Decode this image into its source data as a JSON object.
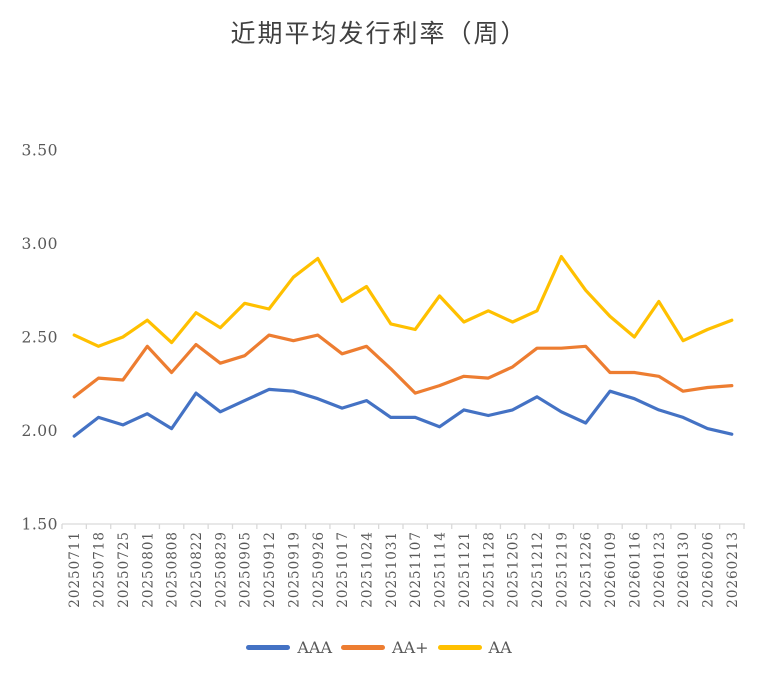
{
  "title": "近期平均发行利率（周）",
  "colors": {
    "aaa_line": "#4472C4",
    "aa_plus_line": "#ED7D31",
    "aa_line": "#FFC000",
    "axis": "#D9D9D9",
    "tick_label": "#595959",
    "title_text": "#404040",
    "background": "#FFFFFF"
  },
  "chart_data": {
    "type": "line",
    "title": "近期平均发行利率（周）",
    "xlabel": "",
    "ylabel": "",
    "ylim": [
      1.5,
      3.5
    ],
    "y_ticks": [
      "1.50",
      "2.00",
      "2.50",
      "3.00",
      "3.50"
    ],
    "grid": false,
    "legend_position": "bottom",
    "categories": [
      "20250711",
      "20250718",
      "20250725",
      "20250801",
      "20250808",
      "20250822",
      "20250829",
      "20250905",
      "20250912",
      "20250919",
      "20250926",
      "20251017",
      "20251024",
      "20251031",
      "20251107",
      "20251114",
      "20251121",
      "20251128",
      "20251205",
      "20251212",
      "20251219",
      "20251226",
      "20260109",
      "20260116",
      "20260123",
      "20260130",
      "20260206",
      "20260213"
    ],
    "series": [
      {
        "name": "AAA",
        "color": "#4472C4",
        "values": [
          1.97,
          2.07,
          2.03,
          2.09,
          2.01,
          2.2,
          2.1,
          2.16,
          2.22,
          2.21,
          2.17,
          2.12,
          2.16,
          2.07,
          2.07,
          2.02,
          2.11,
          2.08,
          2.11,
          2.18,
          2.1,
          2.04,
          2.21,
          2.17,
          2.11,
          2.07,
          2.01,
          1.98
        ]
      },
      {
        "name": "AA+",
        "color": "#ED7D31",
        "values": [
          2.18,
          2.28,
          2.27,
          2.45,
          2.31,
          2.46,
          2.36,
          2.4,
          2.51,
          2.48,
          2.51,
          2.41,
          2.45,
          2.33,
          2.2,
          2.24,
          2.29,
          2.28,
          2.34,
          2.44,
          2.44,
          2.45,
          2.31,
          2.31,
          2.29,
          2.21,
          2.23,
          2.24
        ]
      },
      {
        "name": "AA",
        "color": "#FFC000",
        "values": [
          2.51,
          2.45,
          2.5,
          2.59,
          2.47,
          2.63,
          2.55,
          2.68,
          2.65,
          2.82,
          2.92,
          2.69,
          2.77,
          2.57,
          2.54,
          2.72,
          2.58,
          2.64,
          2.58,
          2.64,
          2.93,
          2.75,
          2.61,
          2.5,
          2.69,
          2.48,
          2.54,
          2.59
        ]
      }
    ]
  }
}
